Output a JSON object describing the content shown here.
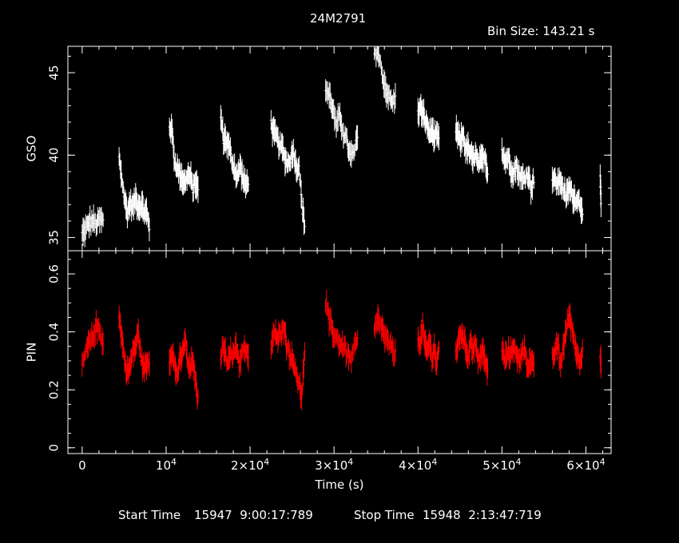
{
  "title": "24M2791",
  "bin_size": "Bin Size: 143.21 s",
  "footer": {
    "start_label": "Start Time",
    "start_value": "15947  9:00:17:789",
    "stop_label": "Stop Time",
    "stop_value": "15948  2:13:47:719"
  },
  "colors": {
    "background": "#000000",
    "axes": "#ffffff",
    "gso": "#ffffff",
    "pin": "#ff0000"
  },
  "chart_data": [
    {
      "type": "scatter",
      "panel": "top",
      "ylabel": "GSO",
      "xlabel": "",
      "xlim": [
        -1700,
        63000
      ],
      "ylim": [
        34.2,
        46.6
      ],
      "yticks": [
        35,
        40,
        45
      ],
      "error_bars": true,
      "series": [
        {
          "color": "#ffffff",
          "segments": [
            [
              0,
              2500,
              [
                35.2,
                35.5,
                35.9,
                36.0,
                35.8,
                36.1,
                36.0
              ]
            ],
            [
              4400,
              8000,
              [
                39.8,
                38.6,
                37.3,
                36.5,
                37.1,
                36.8,
                37.4,
                36.9,
                37.0,
                36.6,
                36.5,
                35.6
              ]
            ],
            [
              10400,
              13800,
              [
                41.8,
                41.4,
                39.6,
                39.2,
                38.9,
                38.5,
                38.3,
                38.8,
                38.7,
                38.0,
                38.4,
                37.8
              ]
            ],
            [
              16500,
              19800,
              [
                42.4,
                41.0,
                40.9,
                40.5,
                39.7,
                39.2,
                38.6,
                39.4,
                38.6,
                38.1,
                38.5
              ]
            ],
            [
              22500,
              26500,
              [
                41.9,
                41.3,
                41.1,
                40.6,
                40.4,
                39.8,
                39.5,
                39.8,
                40.3,
                39.2,
                39.4,
                37.0,
                35.8
              ]
            ],
            [
              29000,
              32800,
              [
                44.0,
                43.6,
                42.9,
                41.7,
                42.4,
                41.4,
                40.8,
                39.9,
                40.1,
                41.1
              ]
            ],
            [
              34800,
              37300,
              [
                46.1,
                46.3,
                45.2,
                44.2,
                43.6,
                43.2,
                43.4
              ]
            ],
            [
              40000,
              42500,
              [
                42.6,
                42.9,
                42.5,
                42.1,
                41.8,
                41.2,
                41.6,
                40.9,
                41.2,
                40.9
              ]
            ],
            [
              44500,
              48300,
              [
                41.6,
                41.1,
                40.8,
                41.3,
                40.3,
                40.4,
                40.0,
                39.7,
                40.1,
                39.4,
                39.6,
                39.8,
                39.9,
                38.9
              ]
            ],
            [
              50000,
              53800,
              [
                40.4,
                39.6,
                39.9,
                39.2,
                39.0,
                39.3,
                38.8,
                38.5,
                38.7,
                38.9,
                38.0,
                38.6
              ]
            ],
            [
              56000,
              59600,
              [
                38.6,
                38.4,
                38.3,
                38.5,
                37.9,
                37.4,
                38.0,
                37.7,
                37.3,
                37.4,
                37.1,
                36.7
              ]
            ],
            [
              61700,
              61800,
              [
                38.5,
                37.0
              ]
            ]
          ]
        }
      ]
    },
    {
      "type": "scatter",
      "panel": "bottom",
      "ylabel": "PIN",
      "xlabel": "Time (s)",
      "xlim": [
        -1700,
        63000
      ],
      "ylim": [
        -0.02,
        0.68
      ],
      "yticks": [
        "0",
        "0.2",
        "0.4",
        "0.6"
      ],
      "xticks": [
        "0",
        "10^4",
        "2×10^4",
        "3×10^4",
        "4×10^4",
        "5×10^4",
        "6×10^4"
      ],
      "error_bars": true,
      "series": [
        {
          "color": "#ff0000",
          "segments": [
            [
              0,
              2500,
              [
                0.28,
                0.33,
                0.36,
                0.38,
                0.42,
                0.4,
                0.37
              ]
            ],
            [
              4400,
              8000,
              [
                0.45,
                0.38,
                0.3,
                0.26,
                0.28,
                0.33,
                0.35,
                0.4,
                0.31,
                0.27,
                0.29,
                0.3
              ]
            ],
            [
              10400,
              13800,
              [
                0.3,
                0.34,
                0.28,
                0.25,
                0.3,
                0.32,
                0.38,
                0.29,
                0.27,
                0.31,
                0.22,
                0.16
              ]
            ],
            [
              16500,
              19800,
              [
                0.32,
                0.35,
                0.3,
                0.33,
                0.31,
                0.36,
                0.29,
                0.33,
                0.34,
                0.3
              ]
            ],
            [
              22500,
              26500,
              [
                0.35,
                0.4,
                0.37,
                0.39,
                0.43,
                0.36,
                0.33,
                0.3,
                0.28,
                0.22,
                0.18,
                0.32
              ]
            ],
            [
              29000,
              32800,
              [
                0.5,
                0.44,
                0.4,
                0.38,
                0.36,
                0.35,
                0.33,
                0.3,
                0.34,
                0.37
              ]
            ],
            [
              34800,
              37300,
              [
                0.4,
                0.44,
                0.42,
                0.38,
                0.36,
                0.34,
                0.32
              ]
            ],
            [
              40000,
              42500,
              [
                0.38,
                0.36,
                0.42,
                0.35,
                0.33,
                0.37,
                0.3,
                0.35,
                0.28,
                0.34
              ]
            ],
            [
              44500,
              48300,
              [
                0.33,
                0.36,
                0.4,
                0.38,
                0.35,
                0.31,
                0.37,
                0.34,
                0.36,
                0.3,
                0.32,
                0.33,
                0.29,
                0.27
              ]
            ],
            [
              50000,
              53800,
              [
                0.34,
                0.3,
                0.33,
                0.32,
                0.36,
                0.31,
                0.3,
                0.34,
                0.33,
                0.28,
                0.3,
                0.27
              ]
            ],
            [
              56000,
              59600,
              [
                0.31,
                0.33,
                0.36,
                0.28,
                0.35,
                0.4,
                0.46,
                0.42,
                0.37,
                0.32,
                0.3,
                0.34
              ]
            ],
            [
              61700,
              61800,
              [
                0.33,
                0.28
              ]
            ]
          ]
        }
      ]
    }
  ]
}
